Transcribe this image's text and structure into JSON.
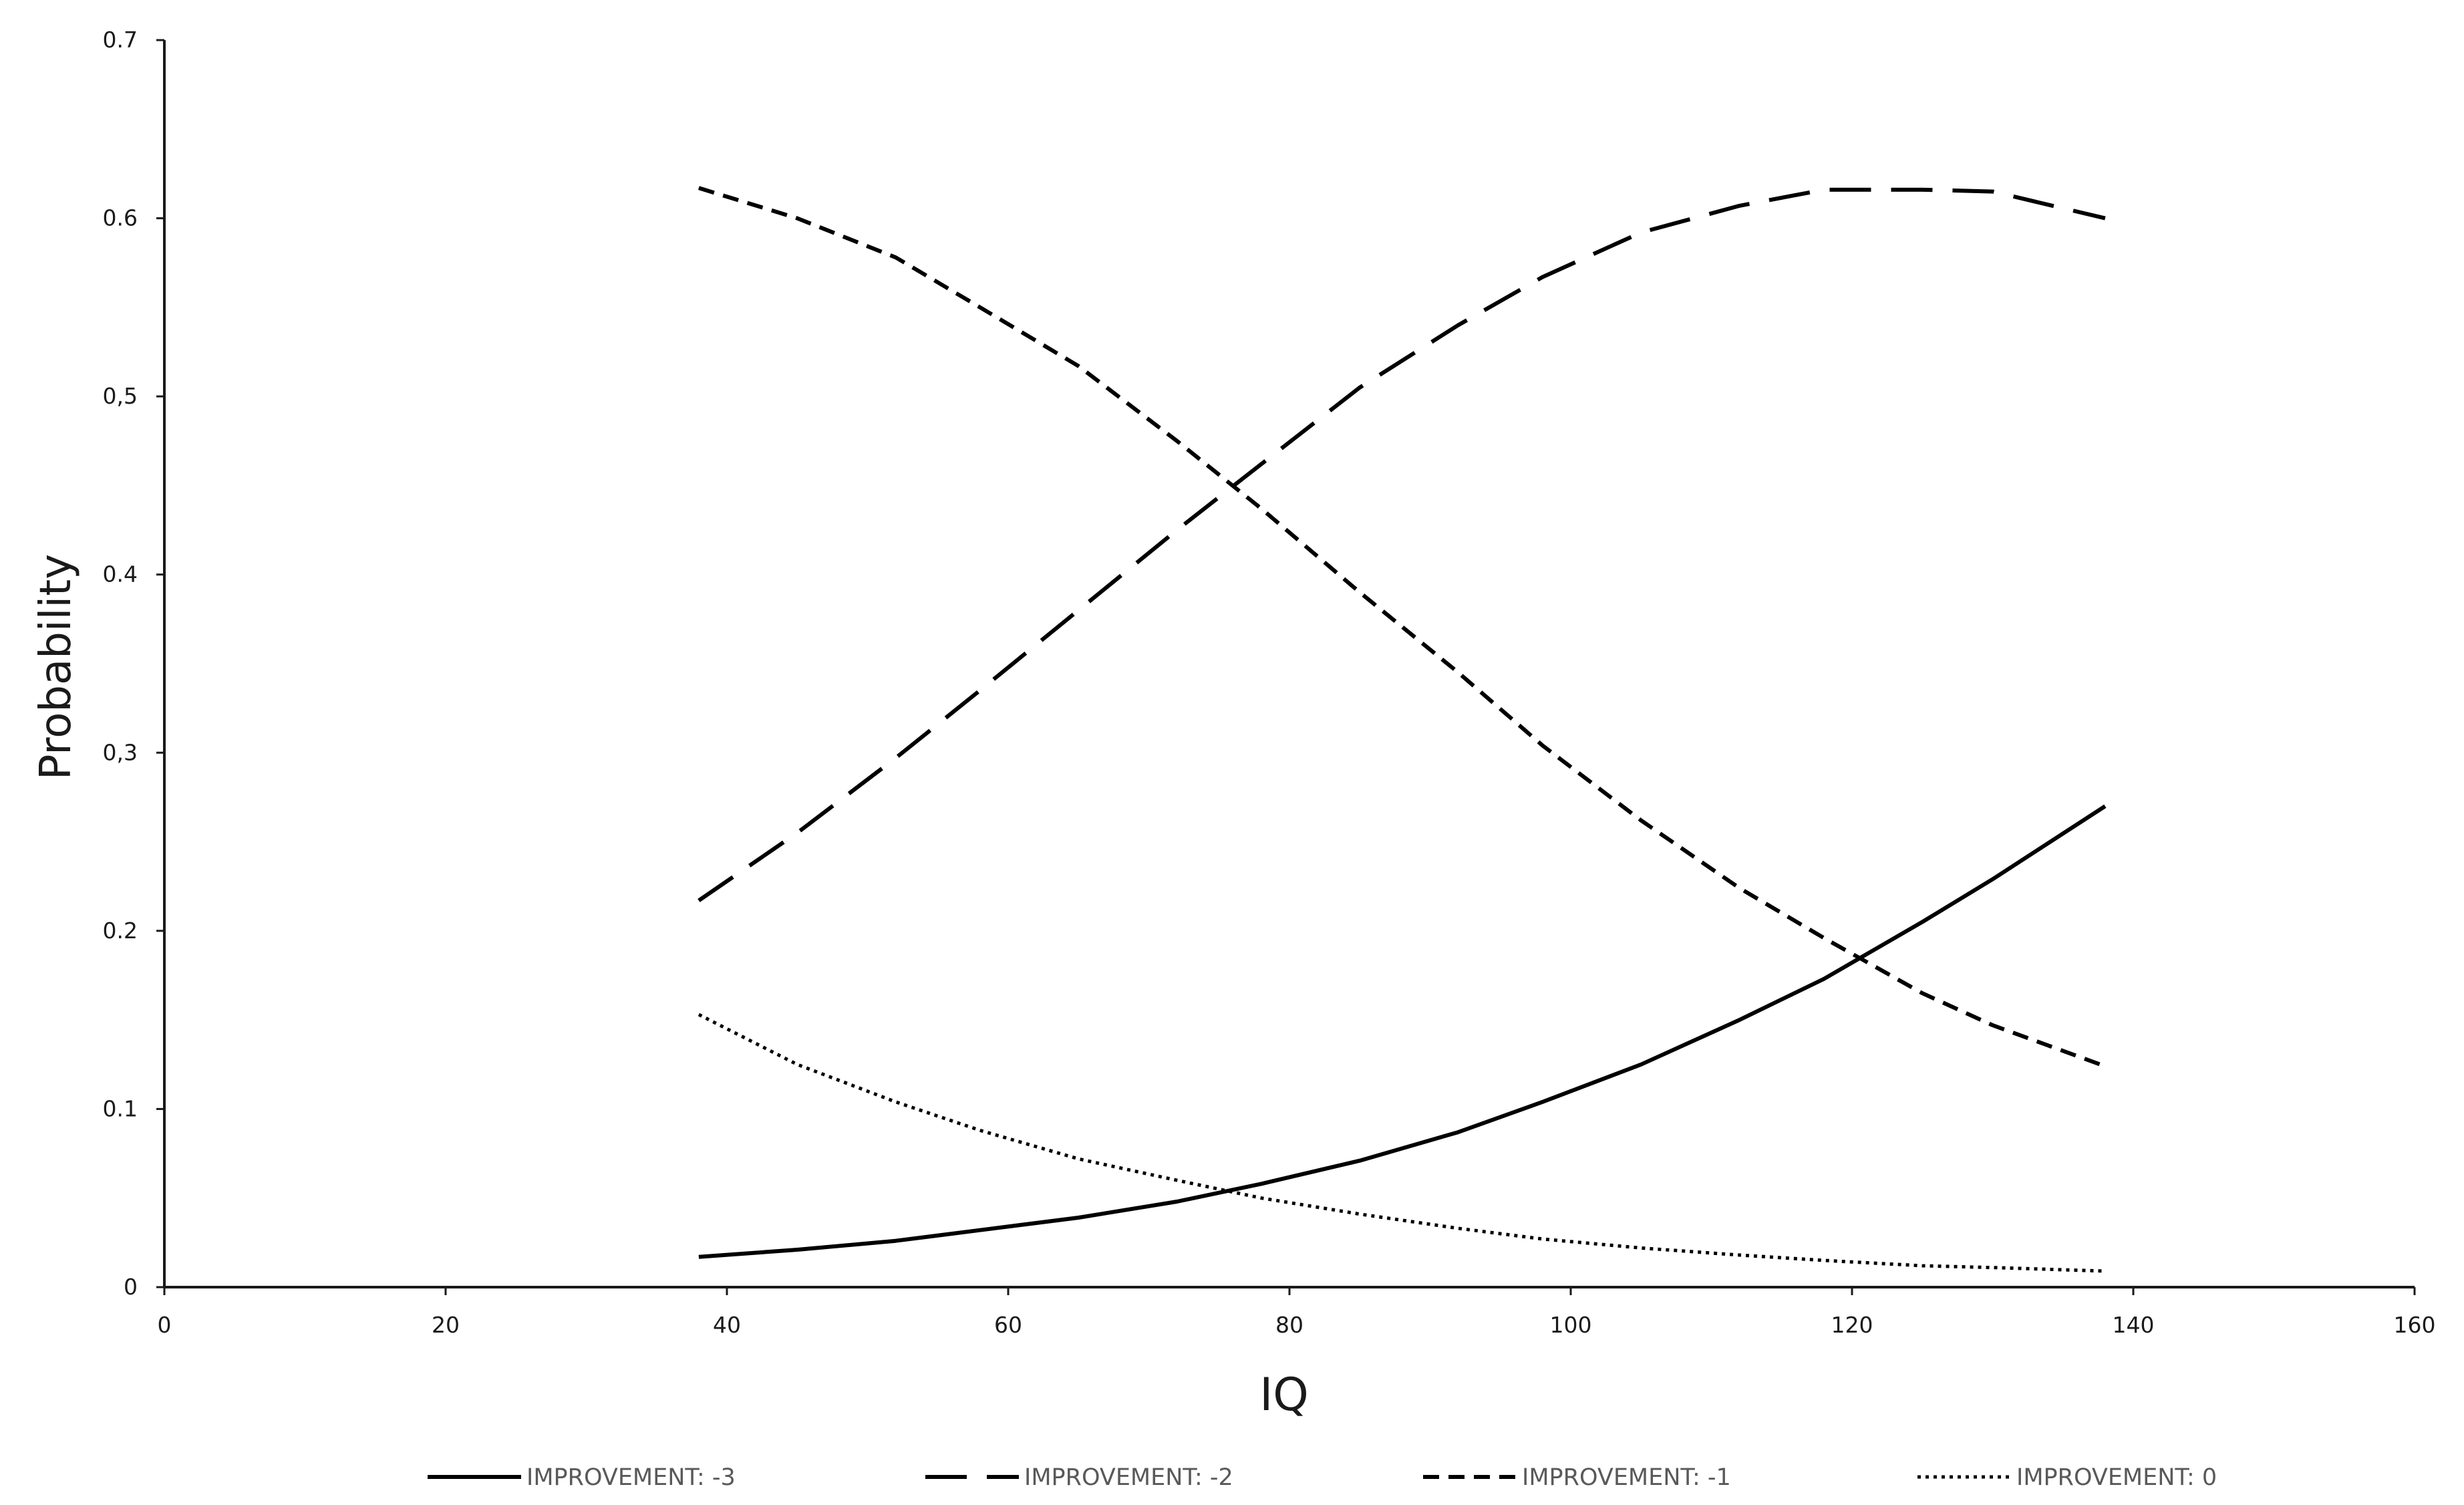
{
  "chart_data": {
    "type": "line",
    "title": "",
    "xlabel": "IQ",
    "ylabel": "Probability",
    "xlim": [
      0,
      160
    ],
    "ylim": [
      0,
      0.7
    ],
    "x_ticks": [
      0,
      20,
      40,
      60,
      80,
      100,
      120,
      140,
      160
    ],
    "x_tick_labels": [
      "0",
      "20",
      "40",
      "60",
      "80",
      "100",
      "120",
      "140",
      "160"
    ],
    "y_ticks": [
      0,
      0.1,
      0.2,
      0.3,
      0.4,
      0.5,
      0.6,
      0.7
    ],
    "y_tick_labels": [
      "0",
      "0.1",
      "0.2",
      "0,3",
      "0.4",
      "0,5",
      "0.6",
      "0.7"
    ],
    "grid": false,
    "legend_position": "bottom",
    "line_color": "#000000",
    "x": [
      38,
      45,
      52,
      58,
      65,
      72,
      78,
      85,
      92,
      98,
      105,
      112,
      118,
      125,
      130,
      138
    ],
    "series": [
      {
        "name": "IMPROVEMENT: -3",
        "style": "solid",
        "values": [
          0.017,
          0.021,
          0.026,
          0.032,
          0.039,
          0.048,
          0.058,
          0.071,
          0.087,
          0.104,
          0.125,
          0.15,
          0.173,
          0.205,
          0.229,
          0.27
        ]
      },
      {
        "name": "IMPROVEMENT: -2",
        "style": "long-dash",
        "values": [
          0.217,
          0.255,
          0.297,
          0.335,
          0.38,
          0.425,
          0.462,
          0.505,
          0.54,
          0.567,
          0.592,
          0.607,
          0.616,
          0.616,
          0.615,
          0.6
        ]
      },
      {
        "name": "IMPROVEMENT: -1",
        "style": "short-dash",
        "values": [
          0.617,
          0.6,
          0.578,
          0.55,
          0.517,
          0.475,
          0.437,
          0.39,
          0.345,
          0.304,
          0.262,
          0.224,
          0.196,
          0.165,
          0.147,
          0.124
        ]
      },
      {
        "name": "IMPROVEMENT: 0",
        "style": "dotted",
        "values": [
          0.153,
          0.125,
          0.104,
          0.088,
          0.072,
          0.06,
          0.05,
          0.041,
          0.033,
          0.027,
          0.022,
          0.018,
          0.015,
          0.012,
          0.011,
          0.009
        ]
      }
    ]
  }
}
